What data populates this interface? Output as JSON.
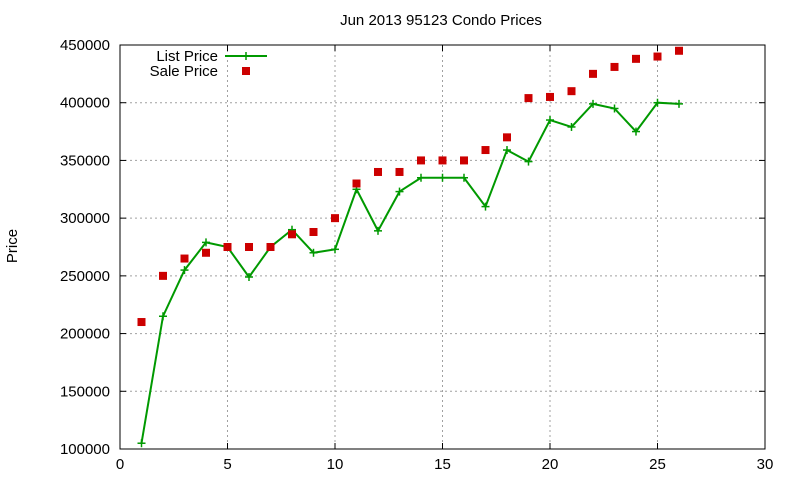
{
  "chart_data": {
    "type": "line",
    "title": "Jun 2013 95123 Condo Prices",
    "xlabel": "",
    "ylabel": "Price",
    "xlim": [
      0,
      30
    ],
    "ylim": [
      100000,
      450000
    ],
    "xticks": [
      0,
      5,
      10,
      15,
      20,
      25,
      30
    ],
    "yticks": [
      100000,
      150000,
      200000,
      250000,
      300000,
      350000,
      400000,
      450000
    ],
    "grid": true,
    "legend_position": "top-left",
    "series": [
      {
        "name": "List Price",
        "style": "line-plus",
        "color": "#009900",
        "x": [
          1,
          2,
          3,
          4,
          5,
          6,
          7,
          8,
          9,
          10,
          11,
          12,
          13,
          14,
          15,
          16,
          17,
          18,
          19,
          20,
          21,
          22,
          23,
          24,
          25,
          26
        ],
        "y": [
          105000,
          215000,
          255000,
          279000,
          275000,
          249000,
          275000,
          290000,
          270000,
          273000,
          325000,
          289000,
          323000,
          335000,
          335000,
          335000,
          310000,
          359000,
          349000,
          385000,
          379000,
          399000,
          395000,
          375000,
          400000,
          399000
        ]
      },
      {
        "name": "Sale Price",
        "style": "square-marker",
        "color": "#cc0000",
        "x": [
          1,
          2,
          3,
          4,
          5,
          6,
          7,
          8,
          9,
          10,
          11,
          12,
          13,
          14,
          15,
          16,
          17,
          18,
          19,
          20,
          21,
          22,
          23,
          24,
          25,
          26
        ],
        "y": [
          210000,
          250000,
          265000,
          270000,
          275000,
          275000,
          275000,
          286000,
          288000,
          300000,
          330000,
          340000,
          340000,
          350000,
          350000,
          350000,
          359000,
          370000,
          404000,
          405000,
          410000,
          425000,
          431000,
          438000,
          440000,
          445000
        ]
      }
    ]
  }
}
